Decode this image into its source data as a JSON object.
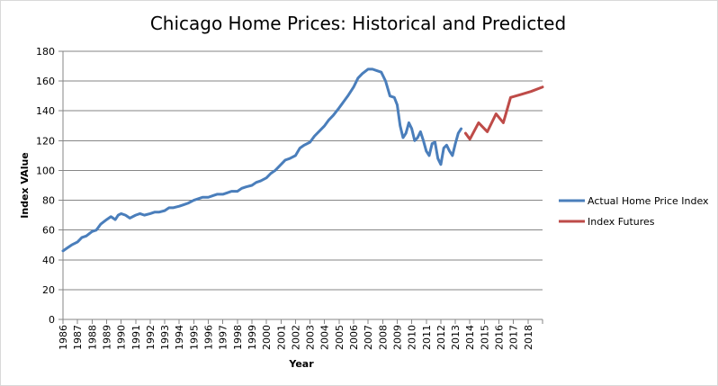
{
  "chart_data": {
    "type": "line",
    "title": "Chicago Home Prices: Historical and Predicted",
    "xlabel": "Year",
    "ylabel": "Index VAlue",
    "xlim": [
      1986,
      2019
    ],
    "ylim": [
      0,
      180
    ],
    "ytick_step": 20,
    "x_ticks": [
      "1986",
      "1987",
      "1988",
      "1989",
      "1990",
      "1991",
      "1992",
      "1993",
      "1994",
      "1995",
      "1996",
      "1997",
      "1998",
      "1999",
      "2000",
      "2001",
      "2002",
      "2003",
      "2004",
      "2005",
      "2006",
      "2007",
      "2008",
      "2009",
      "2010",
      "2011",
      "2012",
      "2013",
      "2014",
      "2015",
      "2016",
      "2017",
      "2018"
    ],
    "grid": true,
    "legend_position": "right",
    "series": [
      {
        "name": "Actual Home Price Index",
        "color": "#4a7ebb",
        "points": [
          [
            1986.0,
            46
          ],
          [
            1986.3,
            48
          ],
          [
            1986.6,
            50
          ],
          [
            1987.0,
            52
          ],
          [
            1987.3,
            55
          ],
          [
            1987.6,
            56
          ],
          [
            1988.0,
            59
          ],
          [
            1988.3,
            60
          ],
          [
            1988.6,
            64
          ],
          [
            1989.0,
            67
          ],
          [
            1989.3,
            69
          ],
          [
            1989.6,
            67
          ],
          [
            1989.8,
            70
          ],
          [
            1990.0,
            71
          ],
          [
            1990.3,
            70
          ],
          [
            1990.6,
            68
          ],
          [
            1991.0,
            70
          ],
          [
            1991.3,
            71
          ],
          [
            1991.6,
            70
          ],
          [
            1992.0,
            71
          ],
          [
            1992.3,
            72
          ],
          [
            1992.6,
            72
          ],
          [
            1993.0,
            73
          ],
          [
            1993.3,
            75
          ],
          [
            1993.6,
            75
          ],
          [
            1994.0,
            76
          ],
          [
            1994.3,
            77
          ],
          [
            1994.6,
            78
          ],
          [
            1995.0,
            80
          ],
          [
            1995.3,
            81
          ],
          [
            1995.6,
            82
          ],
          [
            1996.0,
            82
          ],
          [
            1996.3,
            83
          ],
          [
            1996.6,
            84
          ],
          [
            1997.0,
            84
          ],
          [
            1997.3,
            85
          ],
          [
            1997.6,
            86
          ],
          [
            1998.0,
            86
          ],
          [
            1998.3,
            88
          ],
          [
            1998.6,
            89
          ],
          [
            1999.0,
            90
          ],
          [
            1999.3,
            92
          ],
          [
            1999.6,
            93
          ],
          [
            2000.0,
            95
          ],
          [
            2000.3,
            98
          ],
          [
            2000.6,
            100
          ],
          [
            2001.0,
            104
          ],
          [
            2001.3,
            107
          ],
          [
            2001.6,
            108
          ],
          [
            2002.0,
            110
          ],
          [
            2002.3,
            115
          ],
          [
            2002.6,
            117
          ],
          [
            2003.0,
            119
          ],
          [
            2003.3,
            123
          ],
          [
            2003.6,
            126
          ],
          [
            2004.0,
            130
          ],
          [
            2004.3,
            134
          ],
          [
            2004.6,
            137
          ],
          [
            2005.0,
            142
          ],
          [
            2005.3,
            146
          ],
          [
            2005.6,
            150
          ],
          [
            2006.0,
            156
          ],
          [
            2006.3,
            162
          ],
          [
            2006.6,
            165
          ],
          [
            2007.0,
            168
          ],
          [
            2007.3,
            168
          ],
          [
            2007.6,
            167
          ],
          [
            2007.9,
            166
          ],
          [
            2008.2,
            160
          ],
          [
            2008.5,
            150
          ],
          [
            2008.8,
            149
          ],
          [
            2009.0,
            144
          ],
          [
            2009.2,
            130
          ],
          [
            2009.4,
            122
          ],
          [
            2009.6,
            125
          ],
          [
            2009.8,
            132
          ],
          [
            2010.0,
            128
          ],
          [
            2010.2,
            120
          ],
          [
            2010.4,
            122
          ],
          [
            2010.6,
            126
          ],
          [
            2010.8,
            120
          ],
          [
            2011.0,
            113
          ],
          [
            2011.2,
            110
          ],
          [
            2011.4,
            118
          ],
          [
            2011.6,
            119
          ],
          [
            2011.8,
            108
          ],
          [
            2012.0,
            104
          ],
          [
            2012.2,
            115
          ],
          [
            2012.4,
            117
          ],
          [
            2012.6,
            113
          ],
          [
            2012.8,
            110
          ],
          [
            2013.0,
            118
          ],
          [
            2013.2,
            125
          ],
          [
            2013.4,
            128
          ]
        ]
      },
      {
        "name": "Index Futures",
        "color": "#be4b48",
        "points": [
          [
            2013.7,
            125
          ],
          [
            2014.0,
            121
          ],
          [
            2014.6,
            132
          ],
          [
            2015.2,
            126
          ],
          [
            2015.8,
            138
          ],
          [
            2016.3,
            132
          ],
          [
            2016.8,
            149
          ],
          [
            2017.5,
            151
          ],
          [
            2018.2,
            153
          ],
          [
            2019.0,
            156
          ]
        ]
      }
    ]
  }
}
